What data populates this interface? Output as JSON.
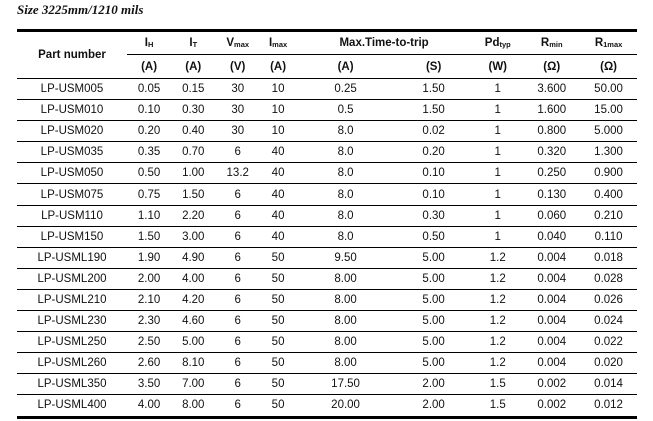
{
  "title": "Size 3225mm/1210 mils",
  "header": {
    "part_number": "Part number",
    "cols": [
      {
        "sym": "I",
        "sub": "H",
        "unit": "(A)"
      },
      {
        "sym": "I",
        "sub": "T",
        "unit": "(A)"
      },
      {
        "sym": "V",
        "sub": "max",
        "unit": "(V)"
      },
      {
        "sym": "I",
        "sub": "max",
        "unit": "(A)"
      },
      {
        "sym": "Max.Time-to-trip",
        "sub": "",
        "unit": "(A)"
      },
      {
        "sym": "",
        "sub": "",
        "unit": "(S)"
      },
      {
        "sym": "Pd",
        "sub": "typ",
        "unit": "(W)"
      },
      {
        "sym": "R",
        "sub": "min",
        "unit": "(Ω)"
      },
      {
        "sym": "R",
        "sub": "1max",
        "unit": "(Ω)"
      }
    ]
  },
  "rows": [
    [
      "LP-USM005",
      "0.05",
      "0.15",
      "30",
      "10",
      "0.25",
      "1.50",
      "1",
      "3.600",
      "50.00"
    ],
    [
      "LP-USM010",
      "0.10",
      "0.30",
      "30",
      "10",
      "0.5",
      "1.50",
      "1",
      "1.600",
      "15.00"
    ],
    [
      "LP-USM020",
      "0.20",
      "0.40",
      "30",
      "10",
      "8.0",
      "0.02",
      "1",
      "0.800",
      "5.000"
    ],
    [
      "LP-USM035",
      "0.35",
      "0.70",
      "6",
      "40",
      "8.0",
      "0.20",
      "1",
      "0.320",
      "1.300"
    ],
    [
      "LP-USM050",
      "0.50",
      "1.00",
      "13.2",
      "40",
      "8.0",
      "0.10",
      "1",
      "0.250",
      "0.900"
    ],
    [
      "LP-USM075",
      "0.75",
      "1.50",
      "6",
      "40",
      "8.0",
      "0.10",
      "1",
      "0.130",
      "0.400"
    ],
    [
      "LP-USM110",
      "1.10",
      "2.20",
      "6",
      "40",
      "8.0",
      "0.30",
      "1",
      "0.060",
      "0.210"
    ],
    [
      "LP-USM150",
      "1.50",
      "3.00",
      "6",
      "40",
      "8.0",
      "0.50",
      "1",
      "0.040",
      "0.110"
    ],
    [
      "LP-USML190",
      "1.90",
      "4.90",
      "6",
      "50",
      "9.50",
      "5.00",
      "1.2",
      "0.004",
      "0.018"
    ],
    [
      "LP-USML200",
      "2.00",
      "4.00",
      "6",
      "50",
      "8.00",
      "5.00",
      "1.2",
      "0.004",
      "0.028"
    ],
    [
      "LP-USML210",
      "2.10",
      "4.20",
      "6",
      "50",
      "8.00",
      "5.00",
      "1.2",
      "0.004",
      "0.026"
    ],
    [
      "LP-USML230",
      "2.30",
      "4.60",
      "6",
      "50",
      "8.00",
      "5.00",
      "1.2",
      "0.004",
      "0.024"
    ],
    [
      "LP-USML250",
      "2.50",
      "5.00",
      "6",
      "50",
      "8.00",
      "5.00",
      "1.2",
      "0.004",
      "0.022"
    ],
    [
      "LP-USML260",
      "2.60",
      "8.10",
      "6",
      "50",
      "8.00",
      "5.00",
      "1.2",
      "0.004",
      "0.020"
    ],
    [
      "LP-USML350",
      "3.50",
      "7.00",
      "6",
      "50",
      "17.50",
      "2.00",
      "1.5",
      "0.002",
      "0.014"
    ],
    [
      "LP-USML400",
      "4.00",
      "8.00",
      "6",
      "50",
      "20.00",
      "2.00",
      "1.5",
      "0.002",
      "0.012"
    ]
  ]
}
